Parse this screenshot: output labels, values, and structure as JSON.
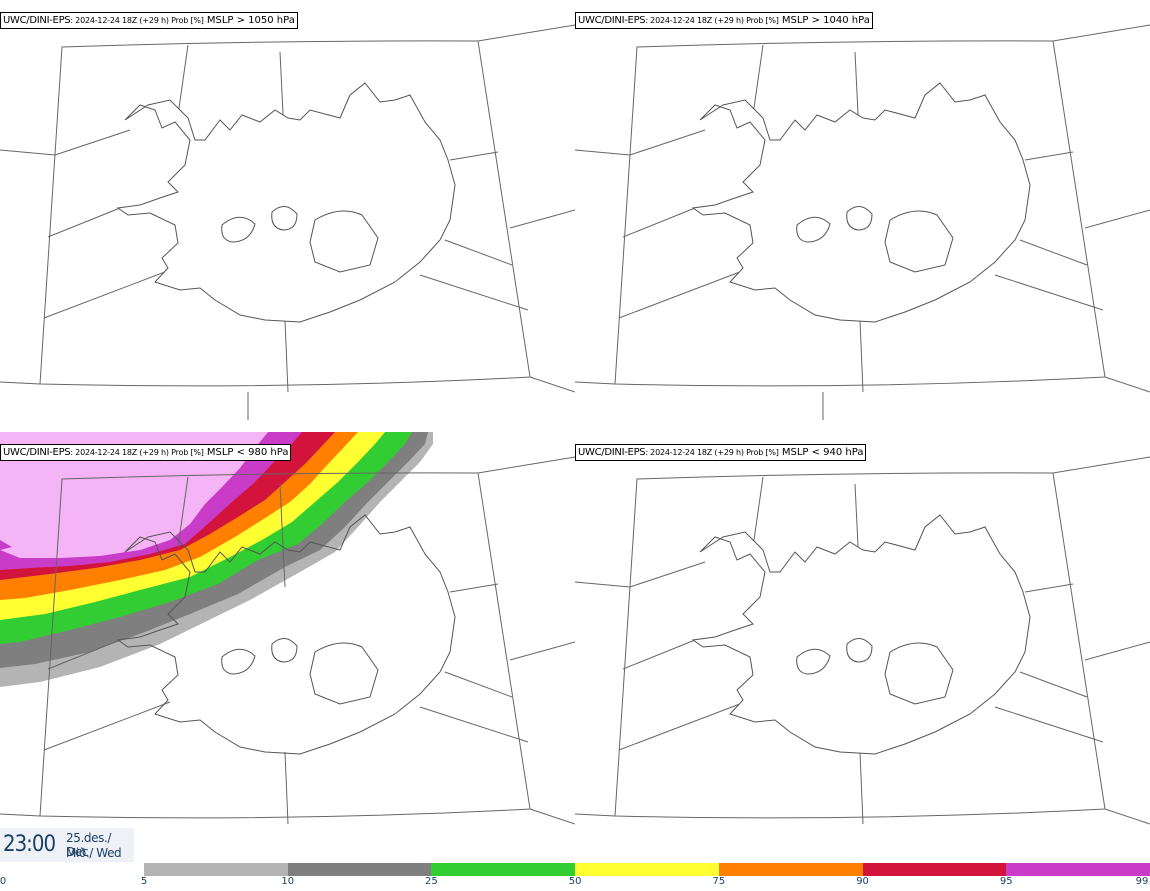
{
  "panels": [
    {
      "model": "UWC/DINI-EPS",
      "meta": ": 2024-12-24 18Z (+29 h) Prob [%]",
      "field": " MSLP > 1050 hPa"
    },
    {
      "model": "UWC/DINI-EPS",
      "meta": ": 2024-12-24 18Z (+29 h) Prob [%]",
      "field": " MSLP > 1040 hPa"
    },
    {
      "model": "UWC/DINI-EPS",
      "meta": ": 2024-12-24 18Z (+29 h) Prob [%]",
      "field": " MSLP < 980 hPa"
    },
    {
      "model": "UWC/DINI-EPS",
      "meta": ": 2024-12-24 18Z (+29 h) Prob [%]",
      "field": " MSLP < 940 hPa"
    }
  ],
  "footer": {
    "time": "23:00",
    "date_line1": "25.des./ Dec",
    "date_line2": "Mið./ Wed"
  },
  "colorbar": {
    "ticks": [
      "0",
      "5",
      "10",
      "25",
      "50",
      "75",
      "90",
      "95",
      "99"
    ],
    "colors": [
      "#ffffff",
      "#b4b4b4",
      "#7f7f7f",
      "#32cd32",
      "#ffff32",
      "#ff7f00",
      "#d2143c",
      "#c83cc8",
      "#f5b4f5"
    ]
  }
}
